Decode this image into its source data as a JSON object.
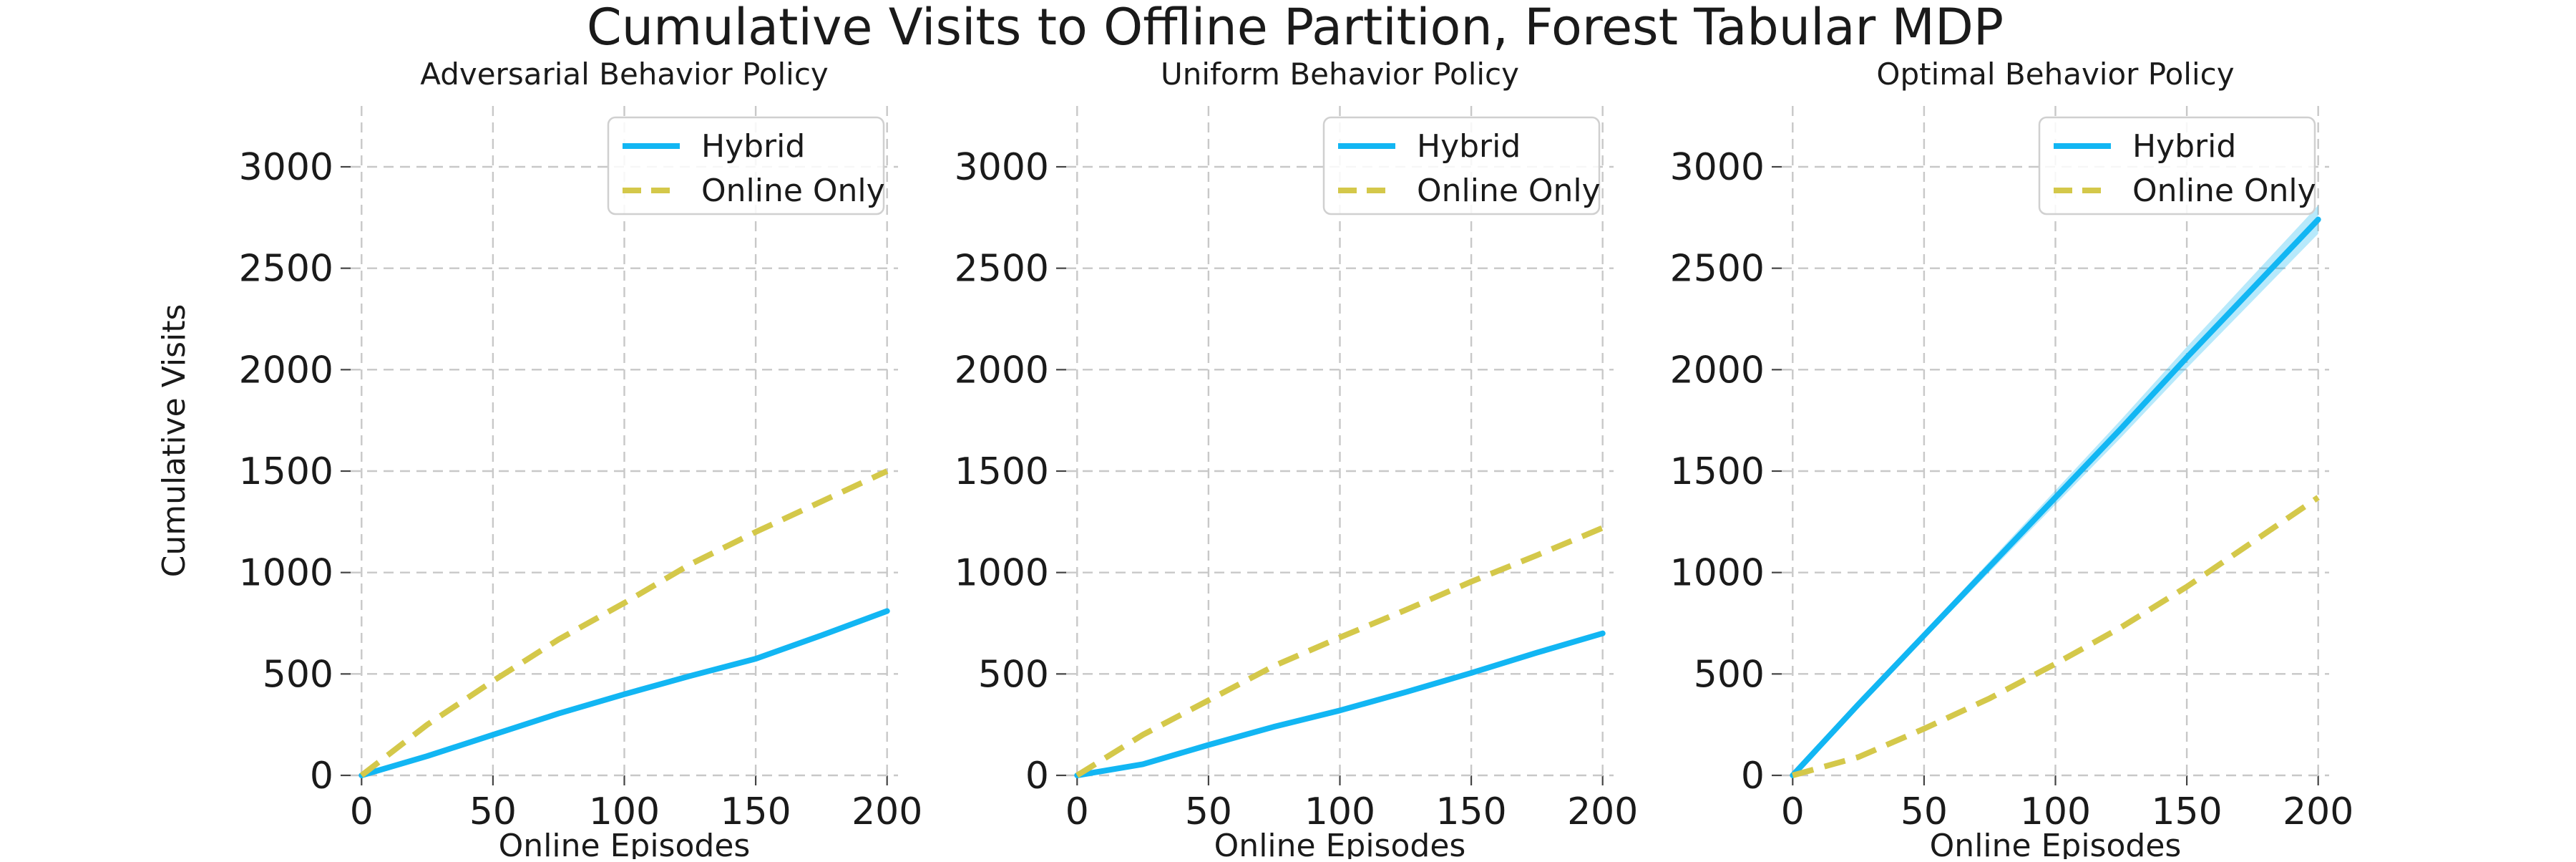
{
  "chart_data": {
    "type": "line",
    "title": "Cumulative Visits to Offline Partition, Forest Tabular MDP",
    "series_styles": [
      {
        "name": "Hybrid",
        "color": "#12b6f3",
        "dash": "solid"
      },
      {
        "name": "Online Only",
        "color": "#d4c84a",
        "dash": "dashed"
      }
    ],
    "legend_position": "top-right",
    "grid": true,
    "panels": [
      {
        "title": "Adversarial Behavior Policy",
        "xlabel": "Online Episodes",
        "ylabel": "Cumulative Visits",
        "xlim": [
          0,
          200
        ],
        "ylim": [
          0,
          3300
        ],
        "xticks": [
          "0",
          "50",
          "100",
          "150",
          "200"
        ],
        "yticks": [
          "0",
          "500",
          "1000",
          "1500",
          "2000",
          "2500",
          "3000"
        ],
        "legend": [
          "Hybrid",
          "Online Only"
        ],
        "series": [
          {
            "name": "Hybrid",
            "x": [
              0,
              25,
              50,
              75,
              100,
              125,
              150,
              175,
              200
            ],
            "y": [
              0,
              95,
              200,
              305,
              400,
              490,
              575,
              690,
              810
            ]
          },
          {
            "name": "Online Only",
            "x": [
              0,
              25,
              50,
              75,
              100,
              125,
              150,
              175,
              200
            ],
            "y": [
              0,
              250,
              465,
              670,
              850,
              1040,
              1200,
              1350,
              1500
            ]
          }
        ]
      },
      {
        "title": "Uniform Behavior Policy",
        "xlabel": "Online Episodes",
        "ylabel": "",
        "xlim": [
          0,
          200
        ],
        "ylim": [
          0,
          3300
        ],
        "xticks": [
          "0",
          "50",
          "100",
          "150",
          "200"
        ],
        "yticks": [
          "0",
          "500",
          "1000",
          "1500",
          "2000",
          "2500",
          "3000"
        ],
        "legend": [
          "Hybrid",
          "Online Only"
        ],
        "series": [
          {
            "name": "Hybrid",
            "x": [
              0,
              25,
              50,
              75,
              100,
              125,
              150,
              175,
              200
            ],
            "y": [
              0,
              55,
              150,
              240,
              320,
              410,
              505,
              605,
              700
            ]
          },
          {
            "name": "Online Only",
            "x": [
              0,
              25,
              50,
              75,
              100,
              125,
              150,
              175,
              200
            ],
            "y": [
              0,
              200,
              370,
              540,
              680,
              815,
              955,
              1085,
              1220
            ]
          }
        ]
      },
      {
        "title": "Optimal Behavior Policy",
        "xlabel": "Online Episodes",
        "ylabel": "",
        "xlim": [
          0,
          200
        ],
        "ylim": [
          0,
          3300
        ],
        "xticks": [
          "0",
          "50",
          "100",
          "150",
          "200"
        ],
        "yticks": [
          "0",
          "500",
          "1000",
          "1500",
          "2000",
          "2500",
          "3000"
        ],
        "legend": [
          "Hybrid",
          "Online Only"
        ],
        "series": [
          {
            "name": "Hybrid",
            "x": [
              0,
              25,
              50,
              75,
              100,
              125,
              150,
              175,
              200
            ],
            "y": [
              0,
              350,
              690,
              1030,
              1370,
              1710,
              2060,
              2400,
              2740
            ],
            "band": 70
          },
          {
            "name": "Online Only",
            "x": [
              0,
              25,
              50,
              75,
              100,
              125,
              150,
              175,
              200
            ],
            "y": [
              0,
              90,
              230,
              380,
              550,
              730,
              930,
              1150,
              1370
            ]
          }
        ]
      }
    ]
  }
}
